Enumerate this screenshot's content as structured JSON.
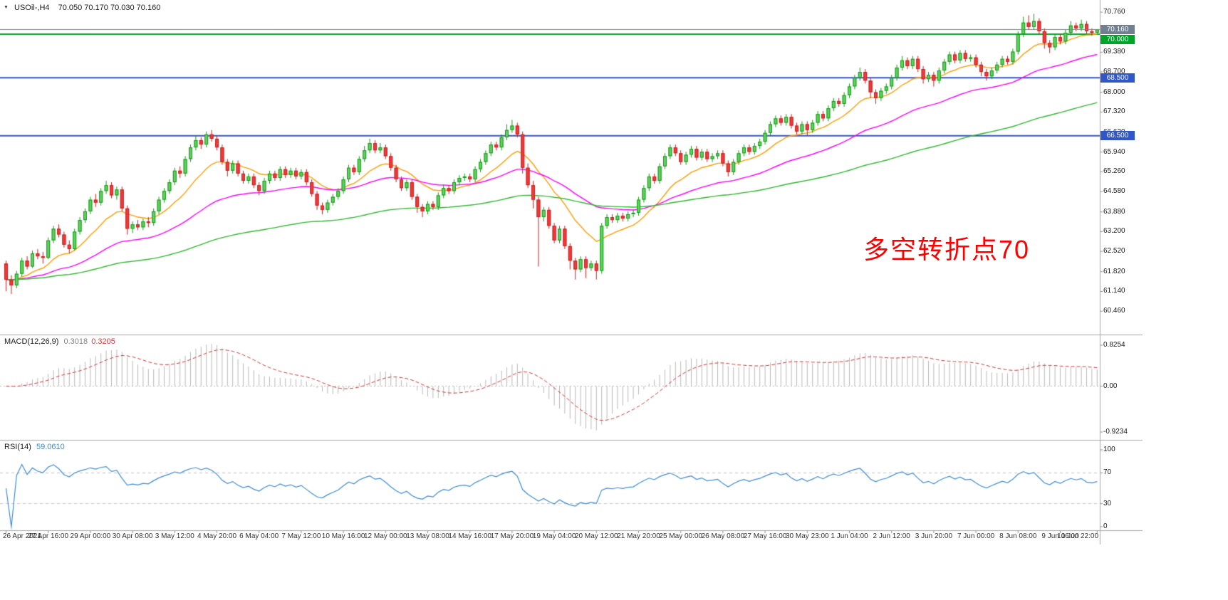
{
  "window": {
    "symbol": "USOil-,H4",
    "ohlc": "70.050 70.170 70.030 70.160"
  },
  "annotation": {
    "text": "多空转折点70",
    "color": "#ff0000"
  },
  "price_axis": {
    "labels": [
      "70.760",
      "70.080",
      "69.380",
      "68.700",
      "68.000",
      "67.320",
      "66.620",
      "65.940",
      "65.260",
      "64.580",
      "63.880",
      "63.200",
      "62.520",
      "61.820",
      "61.140",
      "60.460"
    ],
    "badges": [
      {
        "text": "70.160",
        "price": 70.16,
        "color": "#708090"
      },
      {
        "text": "70.000",
        "price": 70.0,
        "color": "#00a42a"
      },
      {
        "text": "68.500",
        "price": 68.5,
        "color": "#3156c8"
      },
      {
        "text": "66.500",
        "price": 66.5,
        "color": "#3156c8"
      }
    ]
  },
  "levels": [
    {
      "price": 70.0,
      "color": "#00a42a",
      "width": 2
    },
    {
      "price": 68.5,
      "color": "#3156c8",
      "width": 2
    },
    {
      "price": 66.5,
      "color": "#3156c8",
      "width": 2
    }
  ],
  "bid_line": {
    "price": 70.16,
    "color": "#708090"
  },
  "candle_colors": {
    "up_fill": "#63d063",
    "up_stroke": "#129a12",
    "down_fill": "#f03b3b",
    "down_stroke": "#c81e1e"
  },
  "macd": {
    "name": "MACD(12,26,9)",
    "value_main": "0.3018",
    "value_signal": "0.3205",
    "params": [
      12,
      26,
      9
    ],
    "axis": [
      "0.8254",
      "0.00",
      "-0.9234"
    ],
    "range": {
      "max": 0.8254,
      "min": -0.9234
    },
    "hist_color": "#b8b8b8",
    "signal_color": "#d23333"
  },
  "rsi": {
    "name": "RSI(14)",
    "value": "59.0610",
    "period": 14,
    "axis": [
      {
        "v": 100,
        "text": "100"
      },
      {
        "v": 70,
        "text": "70"
      },
      {
        "v": 30,
        "text": "30"
      },
      {
        "v": 0,
        "text": "0"
      }
    ],
    "levels": [
      70,
      30
    ],
    "color": "#3d8bd4"
  },
  "time_axis": {
    "labels": [
      "26 Apr 2021",
      "27 Apr 16:00",
      "29 Apr 00:00",
      "30 Apr 08:00",
      "3 May 12:00",
      "4 May 20:00",
      "6 May 04:00",
      "7 May 12:00",
      "10 May 16:00",
      "12 May 00:00",
      "13 May 08:00",
      "14 May 16:00",
      "17 May 20:00",
      "19 May 04:00",
      "20 May 12:00",
      "21 May 20:00",
      "25 May 00:00",
      "26 May 08:00",
      "27 May 16:00",
      "30 May 23:00",
      "1 Jun 04:00",
      "2 Jun 12:00",
      "3 Jun 20:00",
      "7 Jun 00:00",
      "8 Jun 08:00",
      "9 Jun 16:00",
      "10 Jun 22:00"
    ]
  },
  "chart_data": {
    "type": "candlestick",
    "symbol": "USOil",
    "timeframe": "H4",
    "title": "USOil-,H4 70.050 70.170 70.030 70.160",
    "price_range": {
      "max": 71.177,
      "min": 60.0
    },
    "overlays": [
      {
        "name": "ma-fast",
        "method": "ema",
        "period": 13,
        "color": "#ff9c00"
      },
      {
        "name": "ma-mid",
        "method": "ema",
        "period": 40,
        "color": "#ff00ff"
      },
      {
        "name": "ma-slow",
        "method": "ema",
        "period": 110,
        "color": "#2eb82e"
      }
    ],
    "candles": [
      [
        62.1,
        62.2,
        61.15,
        61.55
      ],
      [
        61.55,
        61.7,
        61.05,
        61.35
      ],
      [
        61.35,
        61.85,
        61.25,
        61.75
      ],
      [
        61.75,
        62.3,
        61.65,
        62.2
      ],
      [
        62.2,
        62.35,
        61.9,
        62.0
      ],
      [
        62.0,
        62.55,
        61.95,
        62.45
      ],
      [
        62.45,
        62.6,
        62.25,
        62.35
      ],
      [
        62.35,
        62.5,
        62.1,
        62.3
      ],
      [
        62.3,
        63.0,
        62.25,
        62.9
      ],
      [
        62.9,
        63.4,
        62.8,
        63.3
      ],
      [
        63.3,
        63.45,
        63.0,
        63.1
      ],
      [
        63.1,
        63.2,
        62.65,
        62.75
      ],
      [
        62.75,
        62.9,
        62.45,
        62.6
      ],
      [
        62.6,
        63.3,
        62.55,
        63.2
      ],
      [
        63.2,
        63.7,
        63.1,
        63.6
      ],
      [
        63.6,
        64.0,
        63.5,
        63.9
      ],
      [
        63.9,
        64.4,
        63.8,
        64.3
      ],
      [
        64.3,
        64.5,
        64.05,
        64.2
      ],
      [
        64.2,
        64.7,
        64.1,
        64.6
      ],
      [
        64.6,
        64.95,
        64.5,
        64.8
      ],
      [
        64.8,
        64.9,
        64.35,
        64.45
      ],
      [
        64.45,
        64.75,
        64.3,
        64.65
      ],
      [
        64.65,
        64.75,
        63.9,
        64.0
      ],
      [
        64.0,
        64.1,
        63.1,
        63.3
      ],
      [
        63.3,
        63.55,
        63.15,
        63.45
      ],
      [
        63.45,
        63.6,
        63.25,
        63.35
      ],
      [
        63.35,
        63.65,
        63.25,
        63.55
      ],
      [
        63.55,
        63.7,
        63.35,
        63.5
      ],
      [
        63.5,
        64.0,
        63.4,
        63.9
      ],
      [
        63.9,
        64.4,
        63.8,
        64.3
      ],
      [
        64.3,
        64.7,
        64.2,
        64.6
      ],
      [
        64.6,
        65.0,
        64.5,
        64.9
      ],
      [
        64.9,
        65.4,
        64.8,
        65.3
      ],
      [
        65.3,
        65.45,
        65.05,
        65.2
      ],
      [
        65.2,
        65.8,
        65.1,
        65.7
      ],
      [
        65.7,
        66.2,
        65.6,
        66.1
      ],
      [
        66.1,
        66.5,
        66.0,
        66.35
      ],
      [
        66.35,
        66.45,
        66.05,
        66.2
      ],
      [
        66.2,
        66.65,
        66.1,
        66.55
      ],
      [
        66.55,
        66.7,
        66.3,
        66.4
      ],
      [
        66.4,
        66.5,
        66.0,
        66.1
      ],
      [
        66.1,
        66.2,
        65.5,
        65.6
      ],
      [
        65.6,
        65.7,
        65.1,
        65.3
      ],
      [
        65.3,
        65.65,
        65.2,
        65.55
      ],
      [
        65.55,
        65.65,
        65.1,
        65.2
      ],
      [
        65.2,
        65.3,
        64.85,
        64.95
      ],
      [
        64.95,
        65.2,
        64.85,
        65.1
      ],
      [
        65.1,
        65.2,
        64.7,
        64.8
      ],
      [
        64.8,
        64.9,
        64.45,
        64.6
      ],
      [
        64.6,
        65.05,
        64.5,
        64.95
      ],
      [
        64.95,
        65.3,
        64.85,
        65.2
      ],
      [
        65.2,
        65.3,
        64.95,
        65.05
      ],
      [
        65.05,
        65.45,
        64.95,
        65.35
      ],
      [
        65.35,
        65.45,
        65.05,
        65.15
      ],
      [
        65.15,
        65.4,
        65.05,
        65.3
      ],
      [
        65.3,
        65.4,
        65.0,
        65.1
      ],
      [
        65.1,
        65.35,
        65.0,
        65.25
      ],
      [
        65.25,
        65.35,
        64.8,
        64.9
      ],
      [
        64.9,
        65.0,
        64.4,
        64.5
      ],
      [
        64.5,
        64.6,
        63.95,
        64.1
      ],
      [
        64.1,
        64.2,
        63.8,
        63.95
      ],
      [
        63.95,
        64.3,
        63.85,
        64.2
      ],
      [
        64.2,
        64.5,
        64.1,
        64.4
      ],
      [
        64.4,
        64.7,
        64.3,
        64.6
      ],
      [
        64.6,
        65.1,
        64.5,
        65.0
      ],
      [
        65.0,
        65.5,
        64.9,
        65.4
      ],
      [
        65.4,
        65.5,
        65.15,
        65.25
      ],
      [
        65.25,
        65.8,
        65.15,
        65.7
      ],
      [
        65.7,
        66.15,
        65.6,
        66.0
      ],
      [
        66.0,
        66.4,
        65.9,
        66.25
      ],
      [
        66.25,
        66.35,
        65.9,
        66.0
      ],
      [
        66.0,
        66.25,
        65.9,
        66.1
      ],
      [
        66.1,
        66.2,
        65.7,
        65.8
      ],
      [
        65.8,
        65.9,
        65.3,
        65.4
      ],
      [
        65.4,
        65.5,
        64.9,
        65.0
      ],
      [
        65.0,
        65.1,
        64.6,
        64.7
      ],
      [
        64.7,
        65.0,
        64.6,
        64.9
      ],
      [
        64.9,
        65.0,
        64.3,
        64.4
      ],
      [
        64.4,
        64.5,
        63.85,
        64.05
      ],
      [
        64.05,
        64.15,
        63.7,
        63.9
      ],
      [
        63.9,
        64.25,
        63.8,
        64.15
      ],
      [
        64.15,
        64.25,
        63.95,
        64.05
      ],
      [
        64.05,
        64.55,
        63.95,
        64.45
      ],
      [
        64.45,
        64.8,
        64.35,
        64.7
      ],
      [
        64.7,
        64.8,
        64.5,
        64.6
      ],
      [
        64.6,
        65.0,
        64.5,
        64.9
      ],
      [
        64.9,
        65.15,
        64.8,
        65.05
      ],
      [
        65.05,
        65.2,
        64.95,
        65.1
      ],
      [
        65.1,
        65.2,
        64.9,
        65.0
      ],
      [
        65.0,
        65.45,
        64.9,
        65.35
      ],
      [
        65.35,
        65.7,
        65.25,
        65.6
      ],
      [
        65.6,
        66.0,
        65.5,
        65.9
      ],
      [
        65.9,
        66.3,
        65.8,
        66.2
      ],
      [
        66.2,
        66.3,
        66.0,
        66.1
      ],
      [
        66.1,
        66.55,
        66.0,
        66.45
      ],
      [
        66.45,
        66.9,
        66.35,
        66.7
      ],
      [
        66.7,
        67.05,
        66.6,
        66.85
      ],
      [
        66.85,
        66.95,
        66.45,
        66.55
      ],
      [
        66.55,
        66.65,
        65.2,
        65.4
      ],
      [
        65.4,
        65.55,
        64.7,
        64.8
      ],
      [
        64.8,
        64.95,
        64.0,
        64.3
      ],
      [
        64.3,
        64.4,
        62.0,
        63.7
      ],
      [
        63.7,
        64.05,
        63.55,
        63.95
      ],
      [
        63.95,
        64.05,
        63.3,
        63.4
      ],
      [
        63.4,
        63.5,
        62.8,
        62.9
      ],
      [
        62.9,
        63.4,
        62.8,
        63.3
      ],
      [
        63.3,
        63.4,
        62.6,
        62.7
      ],
      [
        62.7,
        62.8,
        61.9,
        62.2
      ],
      [
        62.2,
        62.3,
        61.55,
        61.9
      ],
      [
        61.9,
        62.35,
        61.8,
        62.25
      ],
      [
        62.25,
        62.35,
        61.6,
        61.95
      ],
      [
        61.95,
        62.2,
        61.85,
        62.1
      ],
      [
        62.1,
        62.2,
        61.55,
        61.85
      ],
      [
        61.85,
        63.5,
        61.75,
        63.4
      ],
      [
        63.4,
        63.8,
        63.3,
        63.7
      ],
      [
        63.7,
        63.8,
        63.5,
        63.6
      ],
      [
        63.6,
        63.85,
        63.5,
        63.75
      ],
      [
        63.75,
        63.85,
        63.55,
        63.65
      ],
      [
        63.65,
        63.9,
        63.55,
        63.8
      ],
      [
        63.8,
        63.95,
        63.7,
        63.85
      ],
      [
        63.85,
        64.4,
        63.75,
        64.3
      ],
      [
        64.3,
        64.8,
        64.2,
        64.7
      ],
      [
        64.7,
        65.2,
        64.6,
        65.1
      ],
      [
        65.1,
        65.2,
        64.85,
        64.95
      ],
      [
        64.95,
        65.55,
        64.85,
        65.45
      ],
      [
        65.45,
        65.9,
        65.35,
        65.8
      ],
      [
        65.8,
        66.2,
        65.7,
        66.1
      ],
      [
        66.1,
        66.2,
        65.8,
        65.9
      ],
      [
        65.9,
        66.0,
        65.5,
        65.6
      ],
      [
        65.6,
        65.95,
        65.5,
        65.85
      ],
      [
        65.85,
        66.15,
        65.75,
        66.05
      ],
      [
        66.05,
        66.15,
        65.65,
        65.75
      ],
      [
        65.75,
        66.05,
        65.65,
        65.95
      ],
      [
        65.95,
        66.05,
        65.6,
        65.7
      ],
      [
        65.7,
        65.9,
        65.6,
        65.8
      ],
      [
        65.8,
        66.0,
        65.7,
        65.9
      ],
      [
        65.9,
        66.0,
        65.45,
        65.55
      ],
      [
        65.55,
        65.65,
        65.1,
        65.25
      ],
      [
        65.25,
        65.7,
        65.15,
        65.6
      ],
      [
        65.6,
        66.0,
        65.5,
        65.9
      ],
      [
        65.9,
        66.2,
        65.8,
        66.1
      ],
      [
        66.1,
        66.2,
        65.85,
        65.95
      ],
      [
        65.95,
        66.25,
        65.85,
        66.15
      ],
      [
        66.15,
        66.4,
        66.05,
        66.3
      ],
      [
        66.3,
        66.7,
        66.2,
        66.6
      ],
      [
        66.6,
        67.0,
        66.5,
        66.9
      ],
      [
        66.9,
        67.2,
        66.8,
        67.1
      ],
      [
        67.1,
        67.2,
        66.85,
        66.95
      ],
      [
        66.95,
        67.25,
        66.85,
        67.15
      ],
      [
        67.15,
        67.25,
        66.75,
        66.85
      ],
      [
        66.85,
        66.95,
        66.55,
        66.65
      ],
      [
        66.65,
        67.0,
        66.55,
        66.9
      ],
      [
        66.9,
        67.0,
        66.5,
        66.7
      ],
      [
        66.7,
        67.05,
        66.6,
        66.95
      ],
      [
        66.95,
        67.35,
        66.85,
        67.25
      ],
      [
        67.25,
        67.35,
        67.0,
        67.1
      ],
      [
        67.1,
        67.55,
        67.0,
        67.45
      ],
      [
        67.45,
        67.8,
        67.35,
        67.7
      ],
      [
        67.7,
        67.8,
        67.5,
        67.6
      ],
      [
        67.6,
        68.0,
        67.5,
        67.9
      ],
      [
        67.9,
        68.3,
        67.8,
        68.2
      ],
      [
        68.2,
        68.6,
        68.1,
        68.5
      ],
      [
        68.5,
        68.85,
        68.4,
        68.7
      ],
      [
        68.7,
        68.8,
        68.3,
        68.4
      ],
      [
        68.4,
        68.5,
        67.8,
        68.0
      ],
      [
        68.0,
        68.1,
        67.6,
        67.8
      ],
      [
        67.8,
        68.15,
        67.7,
        68.05
      ],
      [
        68.05,
        68.3,
        67.95,
        68.2
      ],
      [
        68.2,
        68.6,
        68.1,
        68.5
      ],
      [
        68.5,
        68.95,
        68.4,
        68.85
      ],
      [
        68.85,
        69.25,
        68.75,
        69.1
      ],
      [
        69.1,
        69.2,
        68.8,
        68.9
      ],
      [
        68.9,
        69.25,
        68.8,
        69.15
      ],
      [
        69.15,
        69.25,
        68.7,
        68.8
      ],
      [
        68.8,
        68.9,
        68.3,
        68.45
      ],
      [
        68.45,
        68.7,
        68.35,
        68.6
      ],
      [
        68.6,
        68.7,
        68.2,
        68.4
      ],
      [
        68.4,
        68.85,
        68.3,
        68.75
      ],
      [
        68.75,
        69.15,
        68.65,
        69.05
      ],
      [
        69.05,
        69.4,
        68.95,
        69.3
      ],
      [
        69.3,
        69.4,
        69.0,
        69.1
      ],
      [
        69.1,
        69.45,
        69.0,
        69.35
      ],
      [
        69.35,
        69.45,
        69.05,
        69.15
      ],
      [
        69.15,
        69.3,
        69.05,
        69.2
      ],
      [
        69.2,
        69.3,
        68.85,
        68.95
      ],
      [
        68.95,
        69.05,
        68.55,
        68.7
      ],
      [
        68.7,
        68.8,
        68.4,
        68.55
      ],
      [
        68.55,
        68.85,
        68.45,
        68.75
      ],
      [
        68.75,
        69.05,
        68.65,
        68.95
      ],
      [
        68.95,
        69.25,
        68.85,
        69.15
      ],
      [
        69.15,
        69.25,
        68.95,
        69.05
      ],
      [
        69.05,
        69.5,
        68.95,
        69.4
      ],
      [
        69.4,
        70.1,
        69.3,
        70.0
      ],
      [
        70.0,
        70.6,
        69.9,
        70.4
      ],
      [
        70.4,
        70.65,
        70.15,
        70.25
      ],
      [
        70.25,
        70.7,
        70.15,
        70.45
      ],
      [
        70.45,
        70.55,
        70.0,
        70.1
      ],
      [
        70.1,
        70.2,
        69.5,
        69.7
      ],
      [
        69.7,
        69.8,
        69.35,
        69.55
      ],
      [
        69.55,
        70.0,
        69.45,
        69.9
      ],
      [
        69.9,
        70.0,
        69.65,
        69.75
      ],
      [
        69.75,
        70.15,
        69.65,
        70.05
      ],
      [
        70.05,
        70.45,
        69.95,
        70.3
      ],
      [
        70.3,
        70.4,
        70.1,
        70.2
      ],
      [
        70.2,
        70.5,
        70.1,
        70.35
      ],
      [
        70.35,
        70.45,
        70.0,
        70.1
      ],
      [
        70.1,
        70.2,
        69.95,
        70.05
      ],
      [
        70.05,
        70.17,
        70.03,
        70.16
      ]
    ]
  }
}
